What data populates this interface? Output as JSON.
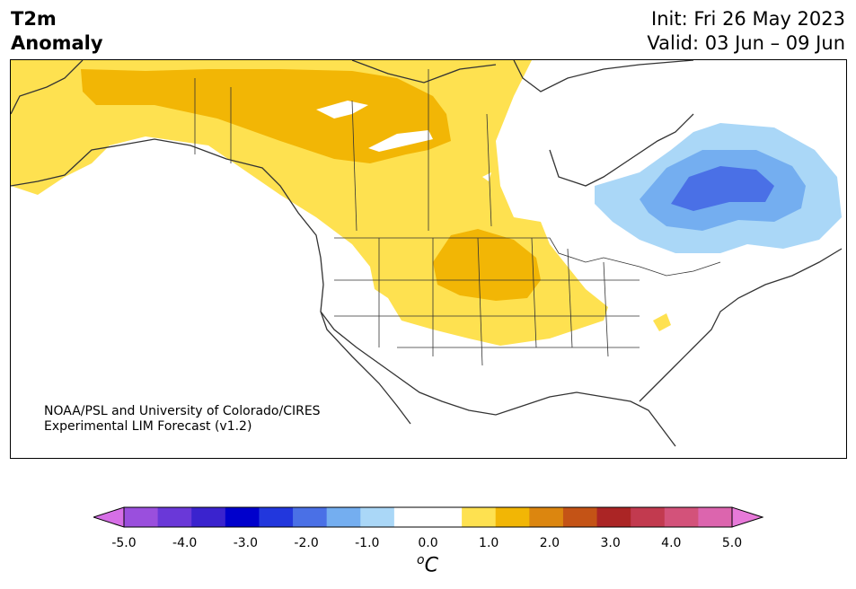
{
  "header": {
    "variable": "T2m",
    "field": "Anomaly",
    "init": "Init: Fri 26 May 2023",
    "valid": "Valid: 03 Jun – 09 Jun"
  },
  "credit": {
    "line1": "NOAA/PSL and University of Colorado/CIRES",
    "line2": "Experimental LIM Forecast (v1.2)"
  },
  "colorbar": {
    "colors": [
      "#d66fe6",
      "#9a4fdd",
      "#6a38d8",
      "#3a23ce",
      "#0000cc",
      "#2237dd",
      "#4a70e6",
      "#74aef0",
      "#aad7f7",
      "#ffffff",
      "#ffffff",
      "#fee150",
      "#f2b605",
      "#dc860f",
      "#c45316",
      "#ab2525",
      "#c23a4f",
      "#d3527a",
      "#dc65ae",
      "#e77ad9"
    ],
    "labels": [
      "-5.0",
      "-4.0",
      "-3.0",
      "-2.0",
      "-1.0",
      "0.0",
      "1.0",
      "2.0",
      "3.0",
      "4.0",
      "5.0"
    ],
    "unit_prefix": "o",
    "unit": "C"
  }
}
